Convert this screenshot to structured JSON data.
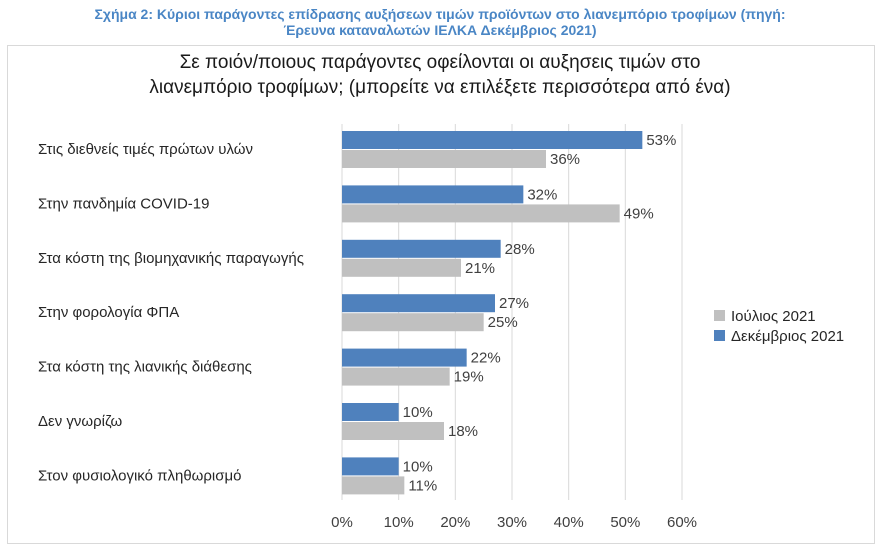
{
  "caption": {
    "line1": "Σχήμα 2: Κύριοι παράγοντες επίδρασης αυξήσεων τιμών προϊόντων στο λιανεμπόριο τροφίμων (πηγή:",
    "line2": "Έρευνα καταναλωτών ΙΕΛΚΑ Δεκέμβριος 2021)"
  },
  "chart_data": {
    "type": "bar",
    "orientation": "horizontal",
    "title": "Σε ποιόν/ποιους παράγοντες οφείλονται οι αυξησεις τιμών στο λιανεμπόριο τροφίμων; (μπορείτε να επιλέξετε περισσότερα από ένα)",
    "title_lines": [
      "Σε ποιόν/ποιους παράγοντες οφείλονται οι αυξησεις τιμών στο",
      "λιανεμπόριο τροφίμων; (μπορείτε να επιλέξετε περισσότερα από ένα)"
    ],
    "categories": [
      "Στις διεθνείς τιμές πρώτων υλών",
      "Στην πανδημία COVID-19",
      "Στα κόστη της βιομηχανικής παραγωγής",
      "Στην φορολογία ΦΠΑ",
      "Στα κόστη της λιανικής διάθεσης",
      "Δεν γνωρίζω",
      "Στον φυσιολογικό πληθωρισμό"
    ],
    "series": [
      {
        "name": "Δεκέμβριος 2021",
        "color": "#4f81bd",
        "values": [
          53,
          32,
          28,
          27,
          22,
          10,
          10
        ]
      },
      {
        "name": "Ιούλιος 2021",
        "color": "#c0c0c0",
        "values": [
          36,
          49,
          21,
          25,
          19,
          18,
          11
        ]
      }
    ],
    "legend_order": [
      "Ιούλιος 2021",
      "Δεκέμβριος 2021"
    ],
    "legend_position": "right",
    "xlim": [
      0,
      60
    ],
    "xticks": [
      0,
      10,
      20,
      30,
      40,
      50,
      60
    ],
    "tick_suffix": "%",
    "value_suffix": "%",
    "gridlines": true,
    "gridline_color": "#d9d9d9"
  }
}
